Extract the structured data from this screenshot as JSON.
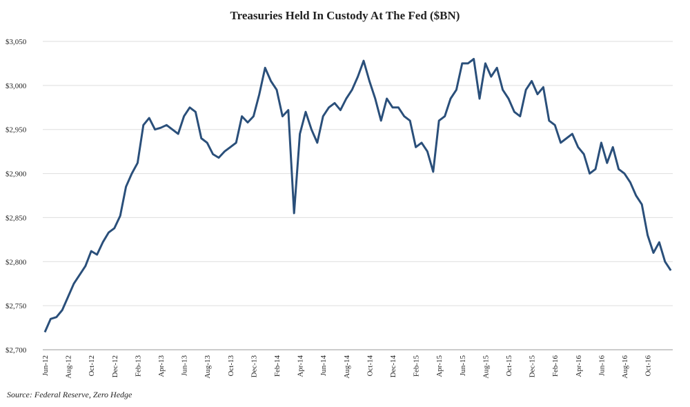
{
  "chart_data": {
    "type": "line",
    "title": "Treasuries Held In Custody At The Fed ($BN)",
    "source": "Source: Federal Reserve, Zero Hedge",
    "categories": [
      "Jun-12",
      null,
      null,
      null,
      "Aug-12",
      null,
      null,
      null,
      "Oct-12",
      null,
      null,
      null,
      "Dec-12",
      null,
      null,
      null,
      "Feb-13",
      null,
      null,
      null,
      "Apr-13",
      null,
      null,
      null,
      "Jun-13",
      null,
      null,
      null,
      "Aug-13",
      null,
      null,
      null,
      "Oct-13",
      null,
      null,
      null,
      "Dec-13",
      null,
      null,
      null,
      "Feb-14",
      null,
      null,
      null,
      "Apr-14",
      null,
      null,
      null,
      "Jun-14",
      null,
      null,
      null,
      "Aug-14",
      null,
      null,
      null,
      "Oct-14",
      null,
      null,
      null,
      "Dec-14",
      null,
      null,
      null,
      "Feb-15",
      null,
      null,
      null,
      "Apr-15",
      null,
      null,
      null,
      "Jun-15",
      null,
      null,
      null,
      "Aug-15",
      null,
      null,
      null,
      "Oct-15",
      null,
      null,
      null,
      "Dec-15",
      null,
      null,
      null,
      "Feb-16",
      null,
      null,
      null,
      "Apr-16",
      null,
      null,
      null,
      "Jun-16",
      null,
      null,
      null,
      "Aug-16",
      null,
      null,
      null,
      "Oct-16",
      null,
      null,
      null,
      null
    ],
    "series": [
      {
        "name": "Treasuries Held In Custody",
        "color": "#2a4f7a",
        "values": [
          2720,
          2735,
          2737,
          2745,
          2760,
          2775,
          2785,
          2795,
          2812,
          2808,
          2822,
          2833,
          2838,
          2852,
          2885,
          2900,
          2912,
          2955,
          2963,
          2950,
          2952,
          2955,
          2950,
          2945,
          2965,
          2975,
          2970,
          2940,
          2935,
          2922,
          2918,
          2925,
          2930,
          2935,
          2965,
          2958,
          2965,
          2990,
          3020,
          3005,
          2995,
          2965,
          2972,
          2855,
          2945,
          2970,
          2950,
          2935,
          2965,
          2975,
          2980,
          2972,
          2985,
          2995,
          3010,
          3028,
          3005,
          2985,
          2960,
          2985,
          2975,
          2975,
          2965,
          2960,
          2930,
          2935,
          2925,
          2902,
          2960,
          2965,
          2985,
          2995,
          3025,
          3025,
          3030,
          2985,
          3025,
          3010,
          3020,
          2995,
          2985,
          2970,
          2965,
          2995,
          3005,
          2990,
          2998,
          2960,
          2955,
          2935,
          2940,
          2945,
          2930,
          2922,
          2900,
          2905,
          2935,
          2912,
          2930,
          2905,
          2900,
          2890,
          2875,
          2865,
          2830,
          2810,
          2822,
          2800,
          2790
        ]
      }
    ],
    "ylim": [
      2700,
      3050
    ],
    "yticks": [
      {
        "value": 2700,
        "label": "$2,700"
      },
      {
        "value": 2750,
        "label": "$2,750"
      },
      {
        "value": 2800,
        "label": "$2,800"
      },
      {
        "value": 2850,
        "label": "$2,850"
      },
      {
        "value": 2900,
        "label": "$2,900"
      },
      {
        "value": 2950,
        "label": "$2,950"
      },
      {
        "value": 3000,
        "label": "$3,000"
      },
      {
        "value": 3050,
        "label": "$3,050"
      }
    ],
    "grid": true
  }
}
